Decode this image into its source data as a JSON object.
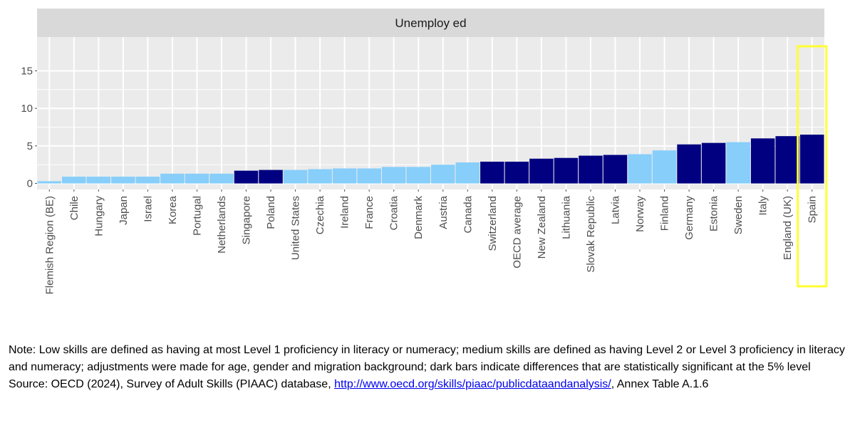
{
  "chart_data": {
    "type": "bar",
    "facet_title": "Unemploy ed",
    "categories": [
      "Flemish Region (BE)",
      "Chile",
      "Hungary",
      "Japan",
      "Israel",
      "Korea",
      "Portugal",
      "Netherlands",
      "Singapore",
      "Poland",
      "United States",
      "Czechia",
      "Ireland",
      "France",
      "Croatia",
      "Denmark",
      "Austria",
      "Canada",
      "Switzerland",
      "OECD average",
      "New Zealand",
      "Lithuania",
      "Slovak Republic",
      "Latvia",
      "Norway",
      "Finland",
      "Germany",
      "Estonia",
      "Sweden",
      "Italy",
      "England (UK)",
      "Spain"
    ],
    "values": [
      0.3,
      0.9,
      0.9,
      0.9,
      0.9,
      1.3,
      1.3,
      1.3,
      1.7,
      1.8,
      1.8,
      1.9,
      2.0,
      2.0,
      2.2,
      2.2,
      2.5,
      2.8,
      2.9,
      2.9,
      3.3,
      3.4,
      3.7,
      3.8,
      3.9,
      4.4,
      5.2,
      5.4,
      5.5,
      6.0,
      6.3,
      6.5
    ],
    "significant": [
      false,
      false,
      false,
      false,
      false,
      false,
      false,
      false,
      true,
      true,
      false,
      false,
      false,
      false,
      false,
      false,
      false,
      false,
      true,
      true,
      true,
      true,
      true,
      true,
      false,
      false,
      true,
      true,
      false,
      true,
      true,
      true
    ],
    "ylim": [
      -0.8,
      19.5
    ],
    "yticks": [
      0,
      5,
      10,
      15
    ],
    "grid": true,
    "highlight_category": "Spain",
    "colors": {
      "significant": "#000080",
      "not_significant": "#87cefa",
      "panel_background": "#ebebeb",
      "grid": "#ffffff",
      "strip_background": "#d9d9d9",
      "highlight_box": "#ffff33"
    }
  },
  "notes": {
    "note_text": "Note: Low skills are defined as having at most Level 1 proficiency in literacy or numeracy; medium skills are defined as having Level 2 or Level 3 proficiency in literacy and numeracy; adjustments were made for age, gender and migration background; dark bars indicate differences that are statistically significant at the 5% level",
    "source_prefix": "Source: OECD (2024), Survey of Adult Skills (PIAAC) database, ",
    "source_link": "http://www.oecd.org/skills/piaac/publicdataandanalysis/",
    "source_suffix": ", Annex Table A.1.6"
  }
}
